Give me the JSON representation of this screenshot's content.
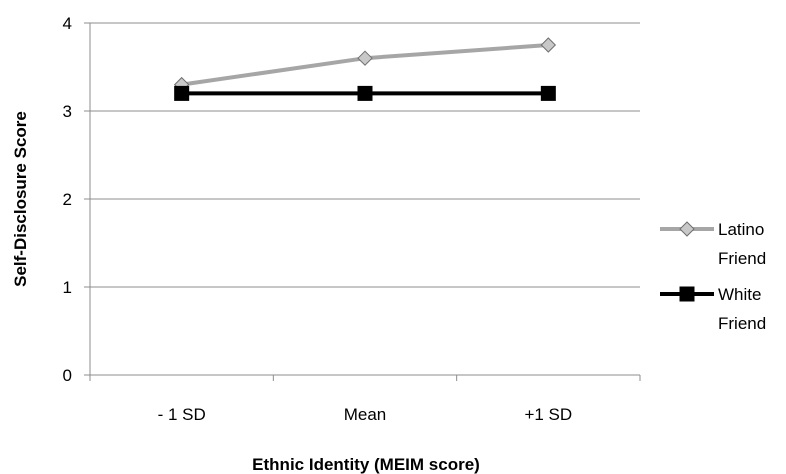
{
  "chart_data": {
    "type": "line",
    "title": "",
    "xlabel": "Ethnic Identity (MEIM score)",
    "ylabel": "Self-Disclosure Score",
    "categories": [
      "- 1 SD",
      "Mean",
      "+1 SD"
    ],
    "ylim": [
      0,
      4
    ],
    "yticks": [
      0,
      1,
      2,
      3,
      4
    ],
    "grid": "horizontal",
    "legend_position": "right",
    "series": [
      {
        "name": "Latino Friend",
        "name_lines": [
          "Latino",
          "Friend"
        ],
        "values": [
          3.3,
          3.6,
          3.75
        ],
        "color": "#a6a6a6",
        "marker": "diamond"
      },
      {
        "name": "White Friend",
        "name_lines": [
          "White",
          "Friend"
        ],
        "values": [
          3.2,
          3.2,
          3.2
        ],
        "color": "#000000",
        "marker": "square"
      }
    ]
  }
}
